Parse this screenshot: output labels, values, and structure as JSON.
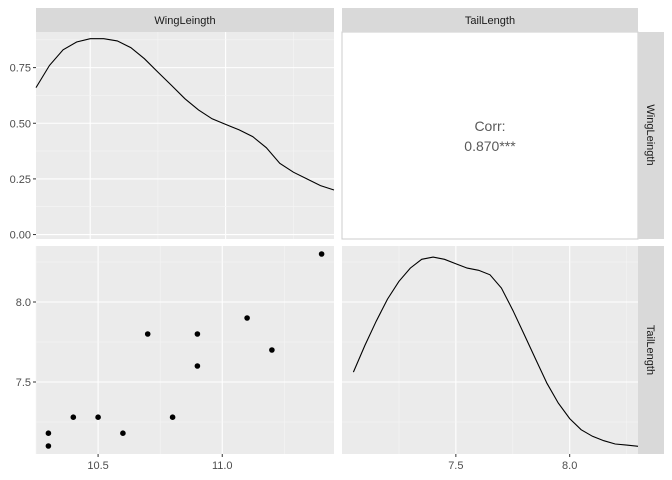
{
  "chart_data": {
    "type": "pairs",
    "variables": [
      "WingLeingth",
      "TailLength"
    ],
    "columns": [
      "WingLeingth",
      "TailLength"
    ],
    "rows": [
      "WingLeingth",
      "TailLength"
    ],
    "panels": [
      {
        "position": "row1-col1",
        "type": "line",
        "description": "density of WingLeingth",
        "x": [
          10.3,
          10.35,
          10.4,
          10.45,
          10.5,
          10.55,
          10.6,
          10.65,
          10.7,
          10.75,
          10.8,
          10.85,
          10.9,
          10.95,
          11.0,
          11.05,
          11.1,
          11.15,
          11.2,
          11.25,
          11.3,
          11.35,
          11.4
        ],
        "y": [
          0.66,
          0.76,
          0.83,
          0.865,
          0.88,
          0.88,
          0.87,
          0.84,
          0.79,
          0.73,
          0.67,
          0.61,
          0.56,
          0.52,
          0.495,
          0.47,
          0.44,
          0.39,
          0.32,
          0.28,
          0.25,
          0.22,
          0.2
        ],
        "xlim": [
          10.3,
          11.4
        ],
        "ylim": [
          -0.02,
          0.91
        ],
        "yticks": [
          0.0,
          0.25,
          0.5,
          0.75
        ],
        "yticklabels": [
          "0.00",
          "0.25",
          "0.50",
          "0.75"
        ]
      },
      {
        "position": "row1-col2",
        "type": "text",
        "label": "Corr:",
        "value": "0.870***"
      },
      {
        "position": "row2-col1",
        "type": "scatter",
        "points": [
          [
            10.3,
            7.1
          ],
          [
            10.3,
            7.18
          ],
          [
            10.4,
            7.28
          ],
          [
            10.5,
            7.28
          ],
          [
            10.6,
            7.18
          ],
          [
            10.7,
            7.8
          ],
          [
            10.8,
            7.28
          ],
          [
            10.9,
            7.8
          ],
          [
            10.9,
            7.6
          ],
          [
            11.1,
            7.9
          ],
          [
            11.2,
            7.7
          ],
          [
            11.4,
            8.3
          ]
        ],
        "xlim": [
          10.25,
          11.45
        ],
        "ylim": [
          7.05,
          8.35
        ],
        "xticks": [
          10.5,
          11.0
        ],
        "xticklabels": [
          "10.5",
          "11.0"
        ],
        "yticks": [
          7.5,
          8.0
        ],
        "yticklabels": [
          "7.5",
          "8.0"
        ]
      },
      {
        "position": "row2-col2",
        "type": "line",
        "description": "density of TailLength",
        "x": [
          7.05,
          7.1,
          7.15,
          7.2,
          7.25,
          7.3,
          7.35,
          7.4,
          7.45,
          7.5,
          7.55,
          7.6,
          7.65,
          7.7,
          7.75,
          7.8,
          7.85,
          7.9,
          7.95,
          8.0,
          8.05,
          8.1,
          8.15,
          8.2,
          8.25,
          8.3
        ],
        "y": [
          0.35,
          0.47,
          0.58,
          0.68,
          0.76,
          0.82,
          0.86,
          0.87,
          0.86,
          0.84,
          0.82,
          0.81,
          0.79,
          0.73,
          0.63,
          0.52,
          0.41,
          0.3,
          0.21,
          0.14,
          0.09,
          0.06,
          0.04,
          0.025,
          0.02,
          0.015
        ],
        "xlim": [
          7.0,
          8.3
        ],
        "ylim": [
          -0.02,
          0.92
        ],
        "xticks": [
          7.5,
          8.0
        ],
        "xticklabels": [
          "7.5",
          "8.0"
        ]
      }
    ],
    "grid": true,
    "legend": "none"
  }
}
